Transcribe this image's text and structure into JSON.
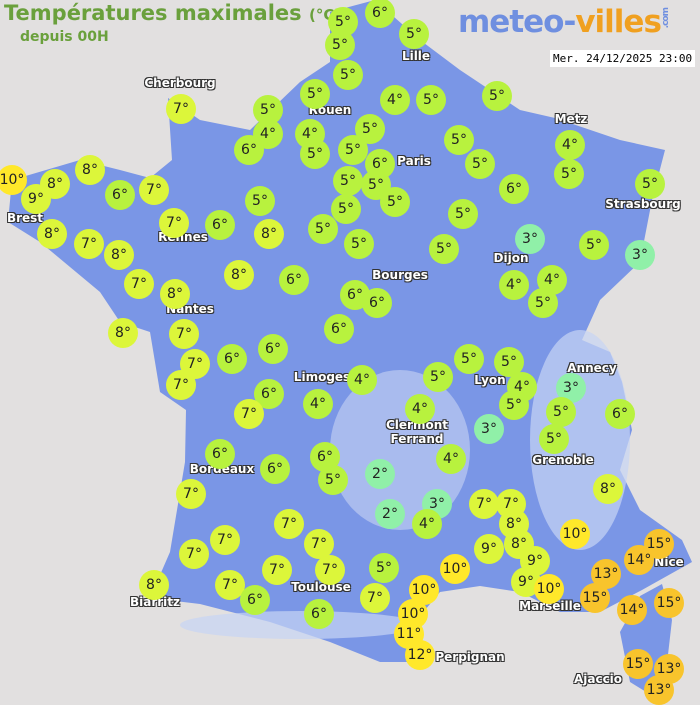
{
  "header": {
    "title": "Températures maximales",
    "unit": "(°C)",
    "subtitle": "depuis 00H"
  },
  "logo": {
    "part1": "meteo-",
    "part2": "villes",
    "suffix": ".com"
  },
  "timestamp": "Mer. 24/12/2025 23:00",
  "colors": {
    "land": "#7a96e6",
    "sea": "#e2e0e0",
    "mountains": "#c8d4f4",
    "scale": {
      "cold": "#90f0a8",
      "cool": "#b8f23e",
      "mild": "#dcf63a",
      "warm": "#ffe82a",
      "hot": "#f8c42c"
    }
  },
  "cities": [
    "Cherbourg",
    "Rouen",
    "Lille",
    "Paris",
    "Metz",
    "Strasbourg",
    "Brest",
    "Rennes",
    "Dijon",
    "Bourges",
    "Nantes",
    "Limoges",
    "Annecy",
    "Lyon",
    "Clermont Ferrand",
    "Grenoble",
    "Bordeaux",
    "Toulouse",
    "Biarritz",
    "Nice",
    "Marseille",
    "Perpignan",
    "Ajaccio"
  ],
  "temperatures": [
    5,
    6,
    5,
    5,
    5,
    5,
    4,
    5,
    5,
    5,
    4,
    4,
    5,
    5,
    5,
    5,
    6,
    6,
    5,
    4,
    5,
    5,
    5,
    5,
    6,
    5,
    5,
    5,
    5,
    5,
    3,
    5,
    3,
    5,
    5,
    4,
    4,
    5,
    6,
    6,
    6,
    8,
    8,
    6,
    7,
    7,
    8,
    6,
    7,
    8,
    9,
    10,
    8,
    7,
    8,
    7,
    8,
    8,
    7,
    6,
    6,
    6,
    7,
    7,
    5,
    5,
    5,
    4,
    4,
    5,
    6,
    7,
    4,
    4,
    3,
    3,
    5,
    6,
    5,
    6,
    6,
    6,
    5,
    2,
    4,
    7,
    8,
    2,
    3,
    4,
    7,
    7,
    8,
    10,
    7,
    7,
    7,
    7,
    8,
    9,
    9,
    9,
    15,
    14,
    10,
    13,
    5,
    7,
    7,
    7,
    10,
    10,
    15,
    14,
    15,
    8,
    6,
    7,
    6,
    10,
    11,
    12,
    15,
    13,
    13
  ],
  "degree_suffix": "°"
}
